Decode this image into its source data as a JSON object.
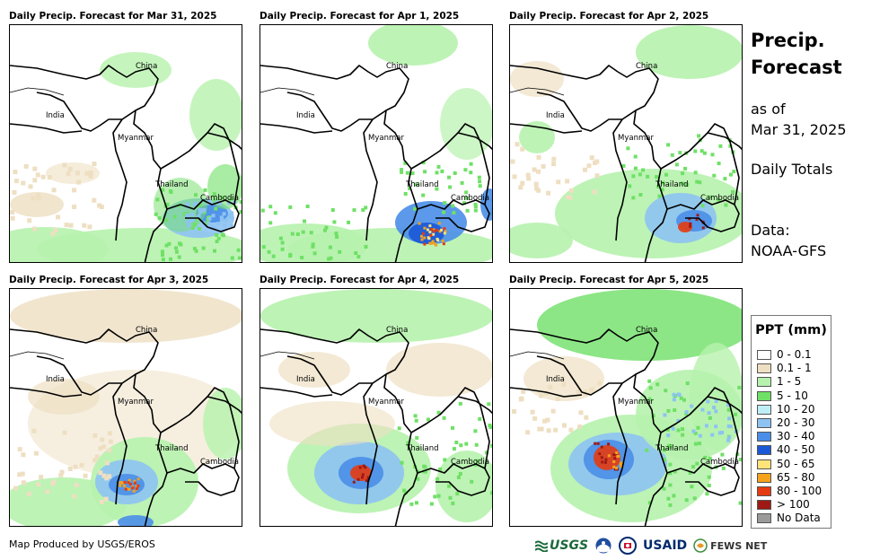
{
  "panels": [
    {
      "title": "Daily Precip. Forecast for Mar 31, 2025"
    },
    {
      "title": "Daily Precip. Forecast for Apr 1, 2025"
    },
    {
      "title": "Daily Precip. Forecast for Apr 2, 2025"
    },
    {
      "title": "Daily Precip. Forecast for Apr 3, 2025"
    },
    {
      "title": "Daily Precip. Forecast for Apr 4, 2025"
    },
    {
      "title": "Daily Precip. Forecast for Apr 5, 2025"
    }
  ],
  "country_labels": {
    "china": "China",
    "india": "India",
    "myanmar": "Myanmar",
    "thailand": "Thailand",
    "cambodia": "Cambodia"
  },
  "side": {
    "heading_line1": "Precip.",
    "heading_line2": "Forecast",
    "asof_line1": "as of",
    "asof_line2": "Mar 31, 2025",
    "totals": "Daily Totals",
    "data_line1": "Data:",
    "data_line2": "NOAA-GFS"
  },
  "legend": {
    "title": "PPT (mm)",
    "items": [
      {
        "label": "0 - 0.1",
        "color": "#ffffff"
      },
      {
        "label": "0.1 - 1",
        "color": "#eedfc2"
      },
      {
        "label": "1 - 5",
        "color": "#b6f2ad"
      },
      {
        "label": "5 - 10",
        "color": "#6fe066"
      },
      {
        "label": "10 - 20",
        "color": "#bfeff6"
      },
      {
        "label": "20 - 30",
        "color": "#8dc3f2"
      },
      {
        "label": "30 - 40",
        "color": "#4a8ee8"
      },
      {
        "label": "40 - 50",
        "color": "#1b58d6"
      },
      {
        "label": "50 - 65",
        "color": "#fde37a"
      },
      {
        "label": "65 - 80",
        "color": "#f6a21c"
      },
      {
        "label": "80 - 100",
        "color": "#e53b10"
      },
      {
        "label": "> 100",
        "color": "#9e1a14"
      },
      {
        "label": "No Data",
        "color": "#9a9a9a"
      }
    ]
  },
  "footer": {
    "credit": "Map Produced by USGS/EROS",
    "logo_usgs": "USGS",
    "logo_usaid": "USAID",
    "logo_fews": "FEWS NET"
  }
}
